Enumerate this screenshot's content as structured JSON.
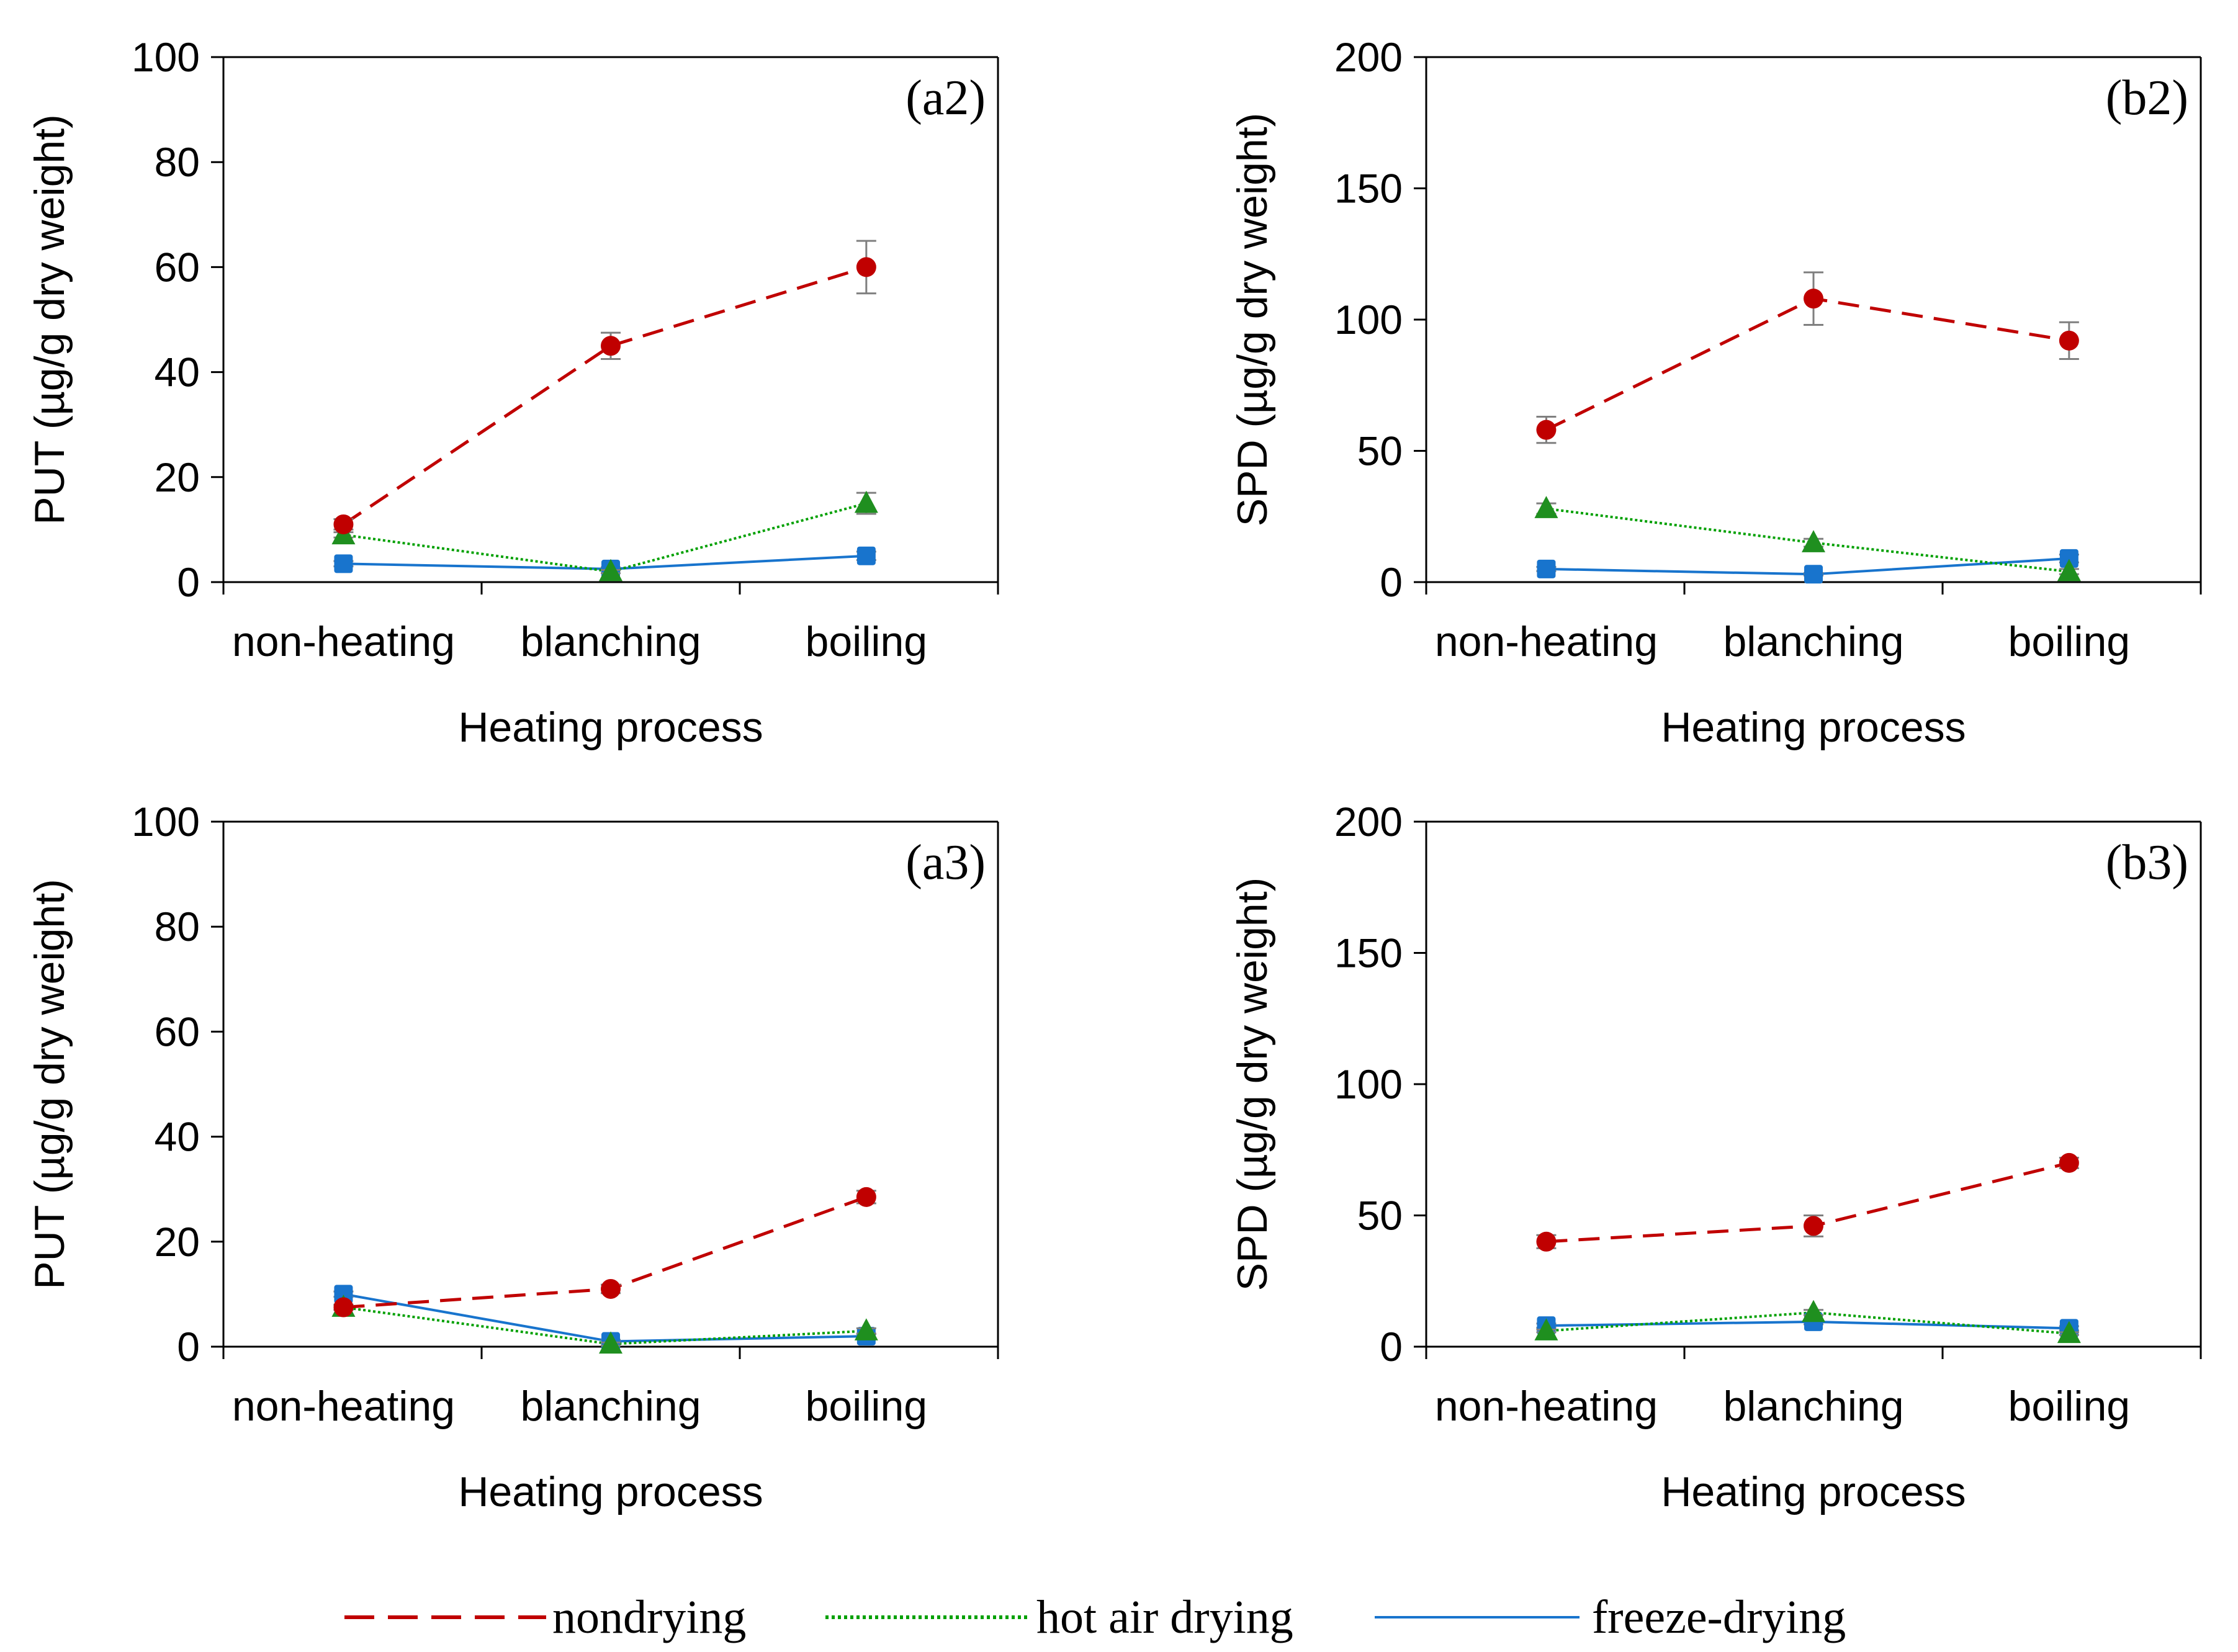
{
  "figure": {
    "legend": [
      {
        "label": "nondrying",
        "color": "#c00000",
        "dash": "dashed"
      },
      {
        "label": "hot air drying",
        "color": "#00a000",
        "dash": "dotted"
      },
      {
        "label": "freeze-drying",
        "color": "#1874cd",
        "dash": "solid"
      }
    ],
    "marker_colors": {
      "nondrying": "#c00000",
      "hot_air": "#1f8f1f",
      "freeze": "#1874cd"
    },
    "error_bar_color": "#7f7f7f"
  },
  "chart_data": [
    {
      "id": "a2",
      "type": "line",
      "panel_label": "(a2)",
      "xlabel": "Heating process",
      "ylabel": "PUT (µg/g dry weight)",
      "categories": [
        "non-heating",
        "blanching",
        "boiling"
      ],
      "ylim": [
        0,
        100
      ],
      "yticks": [
        0,
        20,
        40,
        60,
        80,
        100
      ],
      "series": [
        {
          "name": "nondrying",
          "values": [
            11,
            45,
            60
          ],
          "errors": [
            1,
            2.5,
            5
          ]
        },
        {
          "name": "hot air drying",
          "values": [
            9,
            2,
            15
          ],
          "errors": [
            0.5,
            0.3,
            2
          ]
        },
        {
          "name": "freeze-drying",
          "values": [
            3.5,
            2.5,
            5
          ],
          "errors": [
            0.5,
            0.3,
            0.8
          ]
        }
      ]
    },
    {
      "id": "b2",
      "type": "line",
      "panel_label": "(b2)",
      "xlabel": "Heating process",
      "ylabel": "SPD (µg/g dry weight)",
      "categories": [
        "non-heating",
        "blanching",
        "boiling"
      ],
      "ylim": [
        0,
        200
      ],
      "yticks": [
        0,
        50,
        100,
        150,
        200
      ],
      "series": [
        {
          "name": "nondrying",
          "values": [
            58,
            108,
            92
          ],
          "errors": [
            5,
            10,
            7
          ]
        },
        {
          "name": "hot air drying",
          "values": [
            28,
            15,
            4
          ],
          "errors": [
            2,
            1.5,
            1
          ]
        },
        {
          "name": "freeze-drying",
          "values": [
            5,
            3,
            9
          ],
          "errors": [
            0.8,
            0.5,
            1.5
          ]
        }
      ]
    },
    {
      "id": "a3",
      "type": "line",
      "panel_label": "(a3)",
      "xlabel": "Heating process",
      "ylabel": "PUT (µg/g dry weight)",
      "categories": [
        "non-heating",
        "blanching",
        "boiling"
      ],
      "ylim": [
        0,
        100
      ],
      "yticks": [
        0,
        20,
        40,
        60,
        80,
        100
      ],
      "series": [
        {
          "name": "nondrying",
          "values": [
            7.5,
            11,
            28.5
          ],
          "errors": [
            0.5,
            0.8,
            1.2
          ]
        },
        {
          "name": "hot air drying",
          "values": [
            7.5,
            0.5,
            3
          ],
          "errors": [
            0.5,
            0.3,
            0.5
          ]
        },
        {
          "name": "freeze-drying",
          "values": [
            10,
            1,
            2
          ],
          "errors": [
            0.5,
            0.3,
            0.4
          ]
        }
      ]
    },
    {
      "id": "b3",
      "type": "line",
      "panel_label": "(b3)",
      "xlabel": "Heating process",
      "ylabel": "SPD (µg/g dry weight)",
      "categories": [
        "non-heating",
        "blanching",
        "boiling"
      ],
      "ylim": [
        0,
        200
      ],
      "yticks": [
        0,
        50,
        100,
        150,
        200
      ],
      "series": [
        {
          "name": "nondrying",
          "values": [
            40,
            46,
            70
          ],
          "errors": [
            2.5,
            4,
            2
          ]
        },
        {
          "name": "hot air drying",
          "values": [
            6,
            13,
            5
          ],
          "errors": [
            0.5,
            1,
            0.5
          ]
        },
        {
          "name": "freeze-drying",
          "values": [
            8,
            9.5,
            7
          ],
          "errors": [
            0.8,
            1,
            0.8
          ]
        }
      ]
    }
  ]
}
